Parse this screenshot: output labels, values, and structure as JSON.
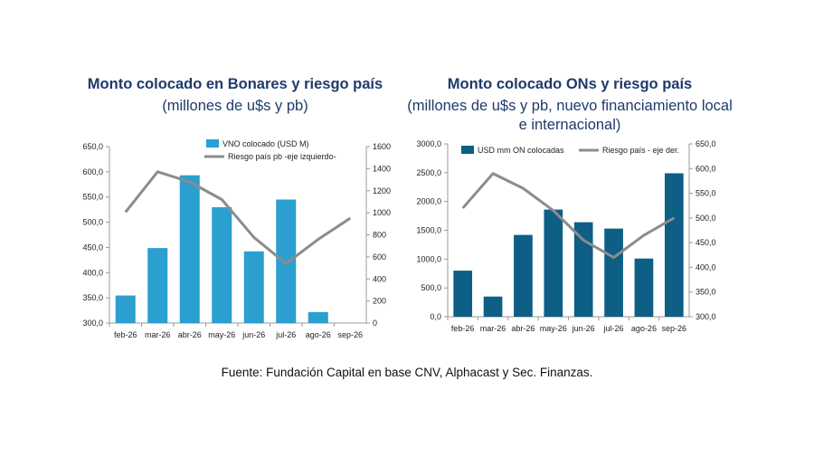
{
  "source_note": "Fuente: Fundación Capital en base CNV, Alphacast y Sec. Finanzas.",
  "chart_data": [
    {
      "type": "bar",
      "title": "Monto colocado en Bonares y riesgo país",
      "subtitle": "(millones de u$s y pb)",
      "categories": [
        "feb-26",
        "mar-26",
        "abr-26",
        "may-26",
        "jun-26",
        "jul-26",
        "ago-26",
        "sep-26"
      ],
      "left_axis": {
        "ylim": [
          300,
          650
        ],
        "ticks": [
          "300,0",
          "350,0",
          "400,0",
          "450,0",
          "500,0",
          "550,0",
          "600,0",
          "650,0"
        ]
      },
      "right_axis": {
        "ylim": [
          0,
          1600
        ],
        "ticks": [
          "0",
          "200",
          "400",
          "600",
          "800",
          "1000",
          "1200",
          "1400",
          "1600"
        ]
      },
      "series": [
        {
          "name": "VNO colocado (USD M)",
          "kind": "bar",
          "axis": "right",
          "color": "#2a9fd0",
          "values": [
            250,
            680,
            1340,
            1050,
            650,
            1120,
            100,
            0
          ]
        },
        {
          "name": "Riesgo país pb -eje izquierdo-",
          "kind": "line",
          "axis": "left",
          "color": "#8c8c8c",
          "values": [
            520,
            600,
            580,
            545,
            470,
            418,
            466,
            508
          ]
        }
      ],
      "legend_position": "top"
    },
    {
      "type": "bar",
      "title": "Monto colocado ONs y riesgo país",
      "subtitle": "(millones de u$s y pb, nuevo financiamiento local e internacional)",
      "categories": [
        "feb-26",
        "mar-26",
        "abr-26",
        "may-26",
        "jun-26",
        "jul-26",
        "ago-26",
        "sep-26"
      ],
      "left_axis": {
        "ylim": [
          0,
          3000
        ],
        "ticks": [
          "0,0",
          "500,0",
          "1000,0",
          "1500,0",
          "2000,0",
          "2500,0",
          "3000,0"
        ]
      },
      "right_axis": {
        "ylim": [
          300,
          650
        ],
        "ticks": [
          "300,0",
          "350,0",
          "400,0",
          "450,0",
          "500,0",
          "550,0",
          "600,0",
          "650,0"
        ]
      },
      "series": [
        {
          "name": "USD mm ON colocadas",
          "kind": "bar",
          "axis": "left",
          "color": "#0d5f85",
          "values": [
            800,
            350,
            1420,
            1860,
            1640,
            1530,
            1010,
            2490
          ]
        },
        {
          "name": "Riesgo país - eje der.",
          "kind": "line",
          "axis": "right",
          "color": "#8c8c8c",
          "values": [
            520,
            590,
            560,
            515,
            455,
            420,
            465,
            500
          ]
        }
      ],
      "legend_position": "top"
    }
  ]
}
